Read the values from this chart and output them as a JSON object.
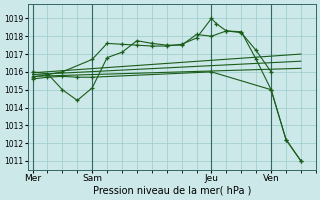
{
  "background_color": "#cce8e8",
  "grid_color": "#99cccc",
  "line_color": "#1a5c1a",
  "xlabel": "Pression niveau de la mer( hPa )",
  "ylim": [
    1010.5,
    1019.8
  ],
  "yticks": [
    1011,
    1012,
    1013,
    1014,
    1015,
    1016,
    1017,
    1018,
    1019
  ],
  "xtick_labels": [
    "Mer",
    "Sam",
    "Jeu",
    "Ven"
  ],
  "xtick_positions": [
    0,
    24,
    72,
    96
  ],
  "xlim": [
    -2,
    114
  ],
  "vline_positions": [
    0,
    24,
    72,
    96
  ],
  "series_hump_x": [
    0,
    6,
    12,
    18,
    24,
    30,
    36,
    42,
    48,
    54,
    60,
    66,
    72,
    78,
    84,
    90,
    96
  ],
  "series_hump_y": [
    1016.0,
    1015.9,
    1015.0,
    1014.4,
    1015.1,
    1016.8,
    1017.1,
    1017.75,
    1017.6,
    1017.5,
    1017.5,
    1018.1,
    1018.0,
    1018.3,
    1018.2,
    1017.2,
    1016.0
  ],
  "series_peak_x": [
    0,
    6,
    12,
    24,
    30,
    36,
    42,
    48,
    54,
    60,
    66,
    72,
    74,
    78,
    84,
    90,
    96,
    102,
    108
  ],
  "series_peak_y": [
    1015.7,
    1015.85,
    1016.0,
    1016.7,
    1017.6,
    1017.55,
    1017.5,
    1017.45,
    1017.45,
    1017.55,
    1017.9,
    1019.0,
    1018.7,
    1018.3,
    1018.25,
    1016.7,
    1015.0,
    1012.2,
    1011.0
  ],
  "series_fall_x": [
    0,
    6,
    12,
    18,
    24,
    72,
    96,
    102,
    108
  ],
  "series_fall_y": [
    1015.6,
    1015.7,
    1015.75,
    1015.7,
    1015.7,
    1016.0,
    1015.0,
    1012.2,
    1011.0
  ],
  "trend1_x": [
    0,
    108
  ],
  "trend1_y": [
    1015.95,
    1017.0
  ],
  "trend2_x": [
    0,
    108
  ],
  "trend2_y": [
    1015.85,
    1016.6
  ],
  "trend3_x": [
    0,
    108
  ],
  "trend3_y": [
    1015.75,
    1016.2
  ]
}
